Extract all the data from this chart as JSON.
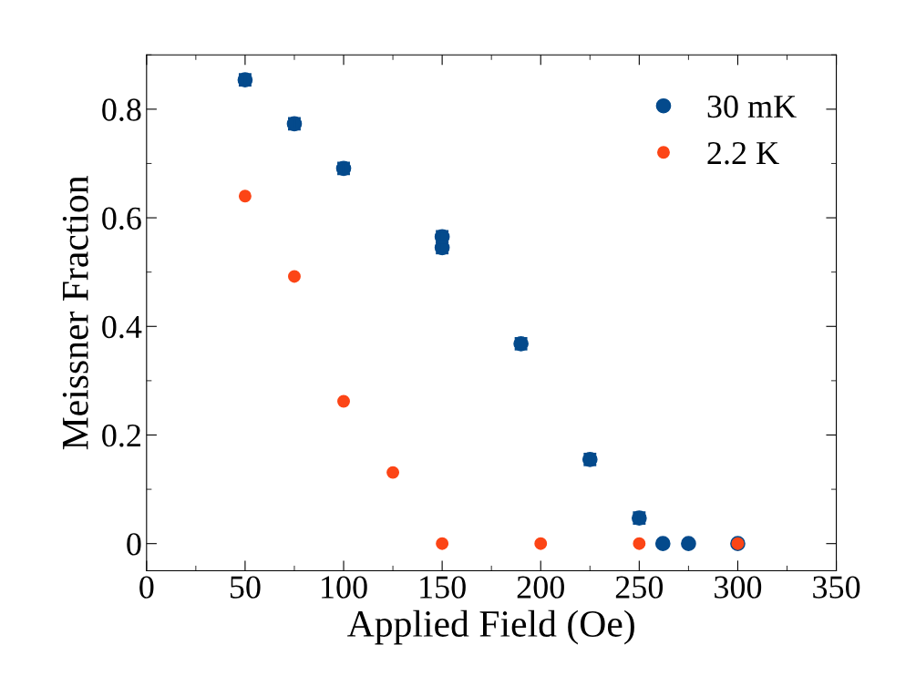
{
  "chart_data": {
    "type": "scatter",
    "xlabel": "Applied Field (Oe)",
    "ylabel": "Meissner Fraction",
    "xlim": [
      0,
      350
    ],
    "xticks": [
      0,
      50,
      100,
      150,
      200,
      250,
      300,
      350
    ],
    "ylim": [
      -0.05,
      0.9
    ],
    "yticks": [
      {
        "value": 0,
        "label": "0"
      },
      0.2,
      0.4,
      0.6,
      0.8
    ],
    "grid": false,
    "legend": "top right",
    "marker": "circle",
    "series": [
      {
        "name": "30 mK",
        "color": "#044a8c",
        "x": [
          50,
          75,
          100,
          150,
          150,
          190,
          225,
          250,
          262,
          275,
          300
        ],
        "values": [
          0.854,
          0.773,
          0.691,
          0.565,
          0.545,
          0.368,
          0.155,
          0.047,
          0,
          0,
          0
        ],
        "errors": [
          0.01,
          0.01,
          0.01,
          0.01,
          0.01,
          0.01,
          0.01,
          0.01,
          null,
          null,
          null
        ]
      },
      {
        "name": "2.2 K",
        "color": "#fc4516",
        "x": [
          50,
          75,
          100,
          125,
          150,
          200,
          250,
          300
        ],
        "values": [
          0.64,
          0.492,
          0.262,
          0.131,
          0,
          0,
          0,
          0
        ]
      }
    ]
  }
}
